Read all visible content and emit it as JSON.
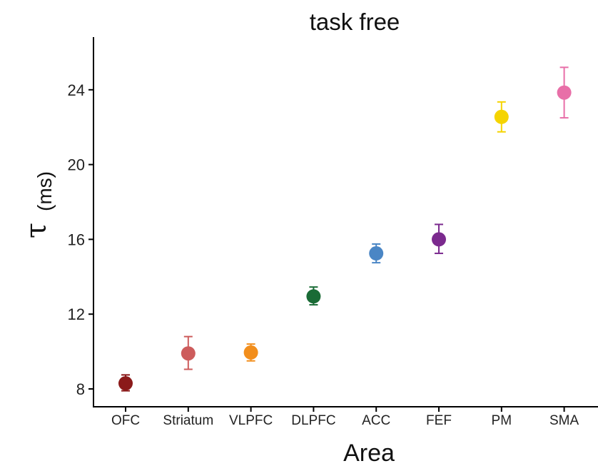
{
  "chart_data": {
    "type": "scatter",
    "title": "task free",
    "xlabel": "Area",
    "ylabel_symbol": "τ",
    "ylabel_unit": "(ms)",
    "ylim": [
      7,
      27
    ],
    "yticks": [
      8,
      12,
      16,
      20,
      24
    ],
    "grid": false,
    "legend": "none",
    "categories": [
      "OFC",
      "Striatum",
      "VLPFC",
      "DLPFC",
      "ACC",
      "FEF",
      "PM",
      "SMA"
    ],
    "values": [
      8.3,
      9.9,
      9.95,
      12.95,
      15.25,
      16.0,
      22.55,
      23.85
    ],
    "error_low": [
      7.9,
      9.05,
      9.5,
      12.5,
      14.75,
      15.25,
      21.75,
      22.5
    ],
    "error_high": [
      8.75,
      10.8,
      10.4,
      13.45,
      15.75,
      16.8,
      23.35,
      25.2
    ],
    "colors": [
      "#8B1A1A",
      "#CD5C5C",
      "#F28E1C",
      "#1A6B36",
      "#4A86C5",
      "#7B2A8E",
      "#F5D400",
      "#E86FA8"
    ]
  }
}
